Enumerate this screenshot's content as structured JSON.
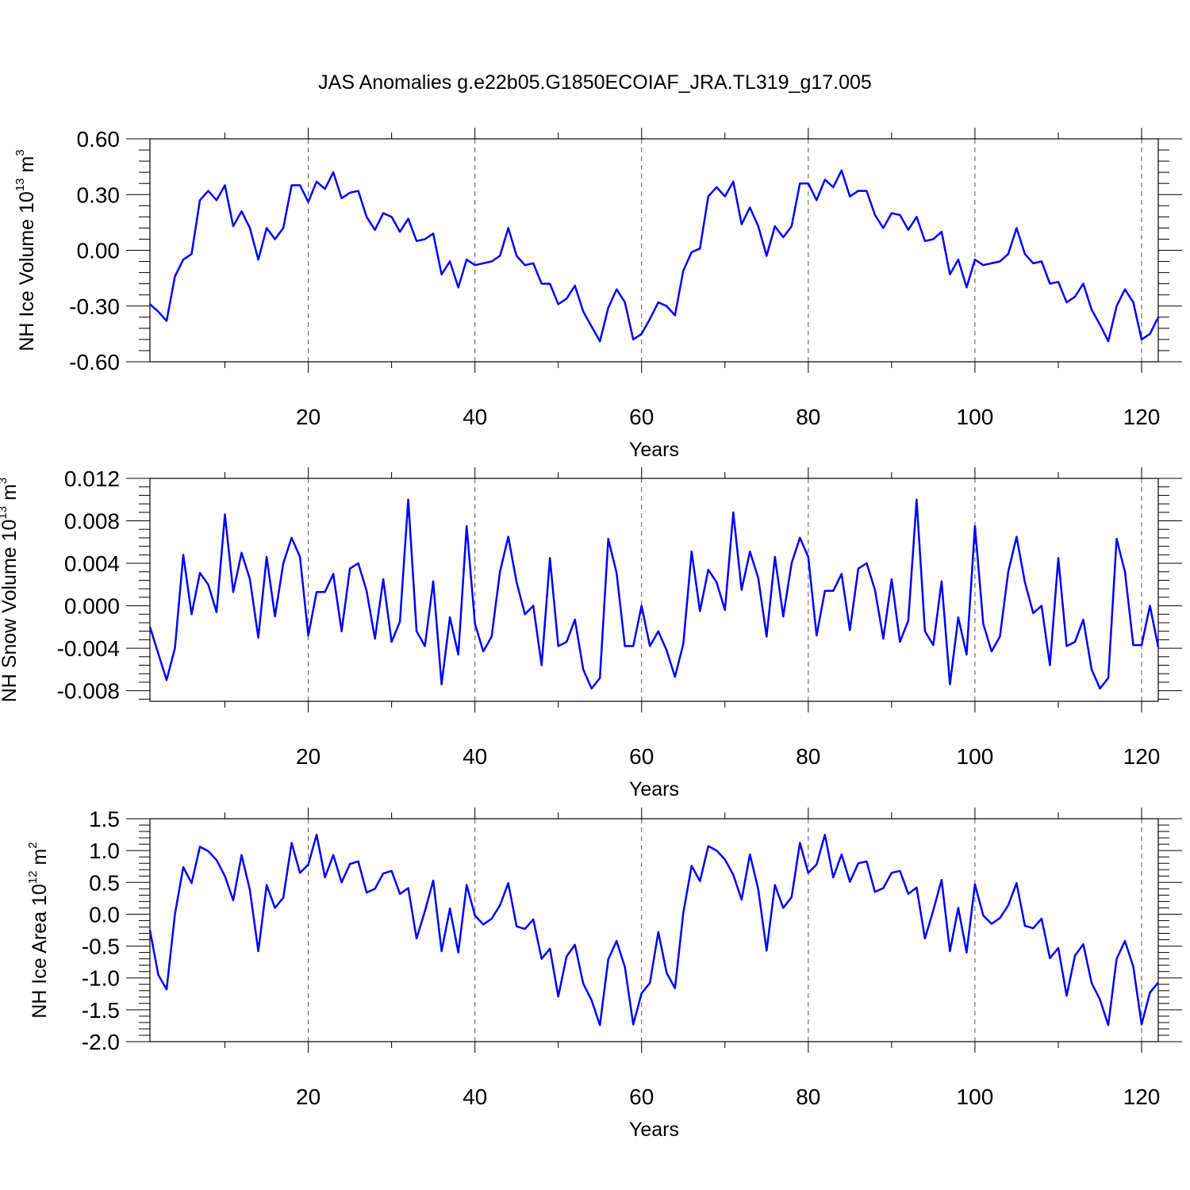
{
  "title": "JAS Anomalies g.e22b05.G1850ECOIAF_JRA.TL319_g17.005",
  "chart_data": [
    {
      "type": "line",
      "xlabel": "Years",
      "ylabel": {
        "text": "NH Ice Volume 10",
        "exp": "13",
        "unit": " m",
        "unit_exp": "3"
      },
      "xlim": [
        1,
        122
      ],
      "ylim": [
        -0.6,
        0.6
      ],
      "xticks": [
        "20",
        "40",
        "60",
        "80",
        "100",
        "120"
      ],
      "yticks": [
        "-0.60",
        "-0.30",
        "0.00",
        "0.30",
        "0.60"
      ],
      "grid": "vertical dashed",
      "series": [
        {
          "color": "#0000ff",
          "x": [
            1,
            2,
            3,
            4,
            5,
            6,
            7,
            8,
            9,
            10,
            11,
            12,
            13,
            14,
            15,
            16,
            17,
            18,
            19,
            20,
            21,
            22,
            23,
            24,
            25,
            26,
            27,
            28,
            29,
            30,
            31,
            32,
            33,
            34,
            35,
            36,
            37,
            38,
            39,
            40,
            41,
            42,
            43,
            44,
            45,
            46,
            47,
            48,
            49,
            50,
            51,
            52,
            53,
            54,
            55,
            56,
            57,
            58,
            59,
            60,
            61,
            62,
            63,
            64,
            65,
            66,
            67,
            68,
            69,
            70,
            71,
            72,
            73,
            74,
            75,
            76,
            77,
            78,
            79,
            80,
            81,
            82,
            83,
            84,
            85,
            86,
            87,
            88,
            89,
            90,
            91,
            92,
            93,
            94,
            95,
            96,
            97,
            98,
            99,
            100,
            101,
            102,
            103,
            104,
            105,
            106,
            107,
            108,
            109,
            110,
            111,
            112,
            113,
            114,
            115,
            116,
            117,
            118,
            119,
            120,
            121,
            122
          ],
          "values": [
            -0.29,
            -0.33,
            -0.38,
            -0.14,
            -0.05,
            -0.02,
            0.27,
            0.32,
            0.27,
            0.35,
            0.13,
            0.21,
            0.12,
            -0.05,
            0.12,
            0.06,
            0.12,
            0.35,
            0.35,
            0.26,
            0.37,
            0.33,
            0.42,
            0.28,
            0.31,
            0.32,
            0.18,
            0.11,
            0.2,
            0.18,
            0.1,
            0.17,
            0.05,
            0.06,
            0.09,
            -0.13,
            -0.06,
            -0.2,
            -0.05,
            -0.08,
            -0.07,
            -0.06,
            -0.03,
            0.12,
            -0.03,
            -0.08,
            -0.07,
            -0.18,
            -0.18,
            -0.29,
            -0.26,
            -0.19,
            -0.33,
            -0.41,
            -0.49,
            -0.31,
            -0.21,
            -0.28,
            -0.48,
            -0.45,
            -0.37,
            -0.28,
            -0.3,
            -0.35,
            -0.11,
            -0.01,
            0.01,
            0.29,
            0.34,
            0.29,
            0.37,
            0.14,
            0.23,
            0.13,
            -0.03,
            0.13,
            0.07,
            0.13,
            0.36,
            0.36,
            0.27,
            0.38,
            0.34,
            0.43,
            0.29,
            0.32,
            0.32,
            0.19,
            0.12,
            0.2,
            0.19,
            0.11,
            0.18,
            0.05,
            0.06,
            0.1,
            -0.13,
            -0.05,
            -0.2,
            -0.05,
            -0.08,
            -0.07,
            -0.06,
            -0.02,
            0.12,
            -0.02,
            -0.07,
            -0.06,
            -0.18,
            -0.17,
            -0.28,
            -0.25,
            -0.18,
            -0.32,
            -0.4,
            -0.49,
            -0.3,
            -0.21,
            -0.28,
            -0.48,
            -0.45,
            -0.36
          ]
        }
      ]
    },
    {
      "type": "line",
      "xlabel": "Years",
      "ylabel": {
        "text": "NH Snow Volume 10",
        "exp": "13",
        "unit": " m",
        "unit_exp": "3"
      },
      "xlim": [
        1,
        122
      ],
      "ylim": [
        -0.009,
        0.012
      ],
      "xticks": [
        "20",
        "40",
        "60",
        "80",
        "100",
        "120"
      ],
      "yticks": [
        "-0.008",
        "-0.004",
        "0.000",
        "0.004",
        "0.008",
        "0.012"
      ],
      "grid": "vertical dashed",
      "series": [
        {
          "color": "#0000ff",
          "x": [
            1,
            2,
            3,
            4,
            5,
            6,
            7,
            8,
            9,
            10,
            11,
            12,
            13,
            14,
            15,
            16,
            17,
            18,
            19,
            20,
            21,
            22,
            23,
            24,
            25,
            26,
            27,
            28,
            29,
            30,
            31,
            32,
            33,
            34,
            35,
            36,
            37,
            38,
            39,
            40,
            41,
            42,
            43,
            44,
            45,
            46,
            47,
            48,
            49,
            50,
            51,
            52,
            53,
            54,
            55,
            56,
            57,
            58,
            59,
            60,
            61,
            62,
            63,
            64,
            65,
            66,
            67,
            68,
            69,
            70,
            71,
            72,
            73,
            74,
            75,
            76,
            77,
            78,
            79,
            80,
            81,
            82,
            83,
            84,
            85,
            86,
            87,
            88,
            89,
            90,
            91,
            92,
            93,
            94,
            95,
            96,
            97,
            98,
            99,
            100,
            101,
            102,
            103,
            104,
            105,
            106,
            107,
            108,
            109,
            110,
            111,
            112,
            113,
            114,
            115,
            116,
            117,
            118,
            119,
            120,
            121,
            122
          ],
          "values": [
            -0.002,
            -0.0045,
            -0.007,
            -0.004,
            0.0048,
            -0.0008,
            0.0031,
            0.002,
            -0.0006,
            0.0086,
            0.0013,
            0.005,
            0.0025,
            -0.003,
            0.0046,
            -0.001,
            0.004,
            0.0064,
            0.0046,
            -0.0028,
            0.0013,
            0.0013,
            0.003,
            -0.0024,
            0.0035,
            0.004,
            0.0014,
            -0.0031,
            0.0025,
            -0.0034,
            -0.0015,
            0.01,
            -0.0024,
            -0.0038,
            0.0023,
            -0.0074,
            -0.0011,
            -0.0046,
            0.0075,
            -0.0017,
            -0.0043,
            -0.0029,
            0.0032,
            0.0065,
            0.0022,
            -0.0008,
            0.0,
            -0.0056,
            0.0045,
            -0.0038,
            -0.0034,
            -0.0013,
            -0.006,
            -0.0078,
            -0.0068,
            0.0063,
            0.0031,
            -0.0038,
            -0.0038,
            0.0,
            -0.0038,
            -0.0024,
            -0.0042,
            -0.0067,
            -0.0036,
            0.0051,
            -0.0005,
            0.0034,
            0.0022,
            -0.0004,
            0.0088,
            0.0015,
            0.0051,
            0.0026,
            -0.0029,
            0.0046,
            -0.001,
            0.004,
            0.0064,
            0.0046,
            -0.0028,
            0.0014,
            0.0014,
            0.003,
            -0.0023,
            0.0035,
            0.004,
            0.0015,
            -0.0031,
            0.0025,
            -0.0034,
            -0.0014,
            0.01,
            -0.0024,
            -0.0037,
            0.0023,
            -0.0074,
            -0.0011,
            -0.0046,
            0.0075,
            -0.0017,
            -0.0043,
            -0.0029,
            0.0032,
            0.0065,
            0.0022,
            -0.0007,
            0.0,
            -0.0056,
            0.0045,
            -0.0038,
            -0.0034,
            -0.0013,
            -0.006,
            -0.0078,
            -0.0068,
            0.0063,
            0.0032,
            -0.0037,
            -0.0037,
            0.0,
            -0.0039
          ]
        }
      ]
    },
    {
      "type": "line",
      "xlabel": "Years",
      "ylabel": {
        "text": "NH Ice Area 10",
        "exp": "12",
        "unit": " m",
        "unit_exp": "2"
      },
      "xlim": [
        1,
        122
      ],
      "ylim": [
        -2.0,
        1.5
      ],
      "xticks": [
        "20",
        "40",
        "60",
        "80",
        "100",
        "120"
      ],
      "yticks": [
        "-2.0",
        "-1.5",
        "-1.0",
        "-0.5",
        "0.0",
        "0.5",
        "1.0",
        "1.5"
      ],
      "grid": "vertical dashed",
      "series": [
        {
          "color": "#0000ff",
          "x": [
            1,
            2,
            3,
            4,
            5,
            6,
            7,
            8,
            9,
            10,
            11,
            12,
            13,
            14,
            15,
            16,
            17,
            18,
            19,
            20,
            21,
            22,
            23,
            24,
            25,
            26,
            27,
            28,
            29,
            30,
            31,
            32,
            33,
            34,
            35,
            36,
            37,
            38,
            39,
            40,
            41,
            42,
            43,
            44,
            45,
            46,
            47,
            48,
            49,
            50,
            51,
            52,
            53,
            54,
            55,
            56,
            57,
            58,
            59,
            60,
            61,
            62,
            63,
            64,
            65,
            66,
            67,
            68,
            69,
            70,
            71,
            72,
            73,
            74,
            75,
            76,
            77,
            78,
            79,
            80,
            81,
            82,
            83,
            84,
            85,
            86,
            87,
            88,
            89,
            90,
            91,
            92,
            93,
            94,
            95,
            96,
            97,
            98,
            99,
            100,
            101,
            102,
            103,
            104,
            105,
            106,
            107,
            108,
            109,
            110,
            111,
            112,
            113,
            114,
            115,
            116,
            117,
            118,
            119,
            120,
            121,
            122
          ],
          "values": [
            -0.25,
            -0.95,
            -1.18,
            0.0,
            0.74,
            0.49,
            1.06,
            0.99,
            0.85,
            0.6,
            0.22,
            0.93,
            0.38,
            -0.58,
            0.46,
            0.1,
            0.26,
            1.12,
            0.65,
            0.78,
            1.25,
            0.58,
            0.93,
            0.5,
            0.79,
            0.83,
            0.34,
            0.4,
            0.64,
            0.68,
            0.32,
            0.41,
            -0.38,
            0.05,
            0.53,
            -0.58,
            0.09,
            -0.6,
            0.46,
            -0.02,
            -0.16,
            -0.07,
            0.14,
            0.49,
            -0.19,
            -0.23,
            -0.08,
            -0.7,
            -0.54,
            -1.29,
            -0.66,
            -0.48,
            -1.09,
            -1.35,
            -1.74,
            -0.71,
            -0.42,
            -0.83,
            -1.73,
            -1.24,
            -1.08,
            -0.28,
            -0.92,
            -1.16,
            0.02,
            0.76,
            0.52,
            1.07,
            1.0,
            0.86,
            0.62,
            0.23,
            0.94,
            0.39,
            -0.57,
            0.46,
            0.1,
            0.27,
            1.12,
            0.65,
            0.78,
            1.25,
            0.58,
            0.94,
            0.51,
            0.8,
            0.83,
            0.35,
            0.41,
            0.65,
            0.68,
            0.32,
            0.42,
            -0.38,
            0.06,
            0.54,
            -0.58,
            0.1,
            -0.6,
            0.47,
            -0.02,
            -0.15,
            -0.06,
            0.14,
            0.49,
            -0.18,
            -0.22,
            -0.07,
            -0.69,
            -0.53,
            -1.28,
            -0.65,
            -0.47,
            -1.08,
            -1.34,
            -1.74,
            -0.7,
            -0.42,
            -0.82,
            -1.73,
            -1.23,
            -1.07
          ]
        }
      ]
    }
  ]
}
